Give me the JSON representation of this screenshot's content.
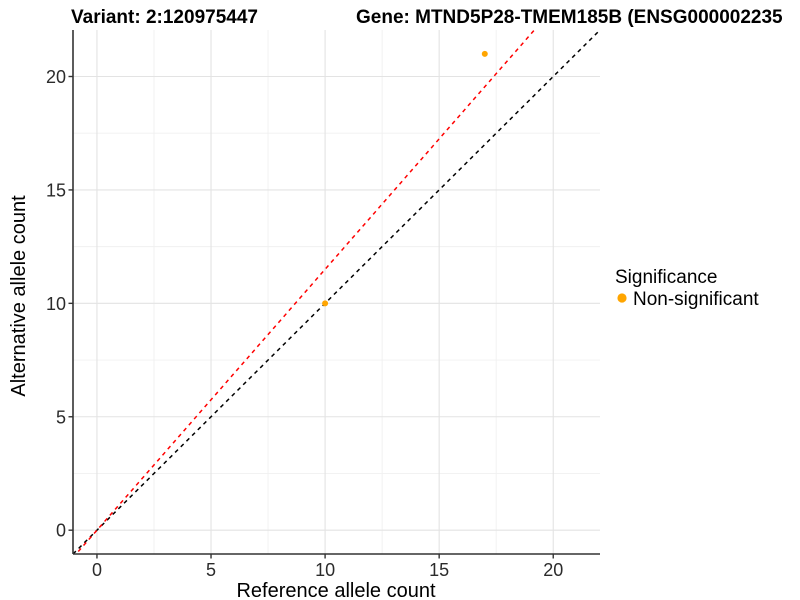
{
  "header": {
    "variant_title": "Variant: 2:120975447",
    "gene_title": "Gene: MTND5P28-TMEM185B (ENSG000002235"
  },
  "chart_data": {
    "type": "scatter",
    "xlabel": "Reference allele count",
    "ylabel": "Alternative allele count",
    "x_ticks": [
      0,
      5,
      10,
      15,
      20
    ],
    "y_ticks": [
      0,
      5,
      10,
      15,
      20
    ],
    "x_minor_ticks": [
      2.5,
      7.5,
      12.5,
      17.5
    ],
    "y_minor_ticks": [
      2.5,
      7.5,
      12.5,
      17.5
    ],
    "xlim": [
      -1.05,
      22.05
    ],
    "ylim": [
      -1.05,
      22.05
    ],
    "grid": "major-and-minor",
    "points": [
      {
        "x": 10,
        "y": 10,
        "significance": "Non-significant"
      },
      {
        "x": 17,
        "y": 21,
        "significance": "Non-significant"
      }
    ],
    "lines": [
      {
        "name": "identity-line",
        "slope": 1.0,
        "intercept": 0,
        "color": "#000000",
        "dashed": true
      },
      {
        "name": "expected-ratio-line",
        "slope": 1.15,
        "intercept": 0,
        "color": "#ff0000",
        "dashed": true
      }
    ],
    "legend": {
      "title": "Significance",
      "position": "right",
      "items": [
        {
          "label": "Non-significant",
          "color": "#FFA500"
        }
      ]
    },
    "colors": {
      "point": "#FFA500",
      "grid_major": "#e3e3e3",
      "grid_minor": "#f0f0f0",
      "axis_line": "#333333",
      "tick_mark": "#333333"
    }
  }
}
